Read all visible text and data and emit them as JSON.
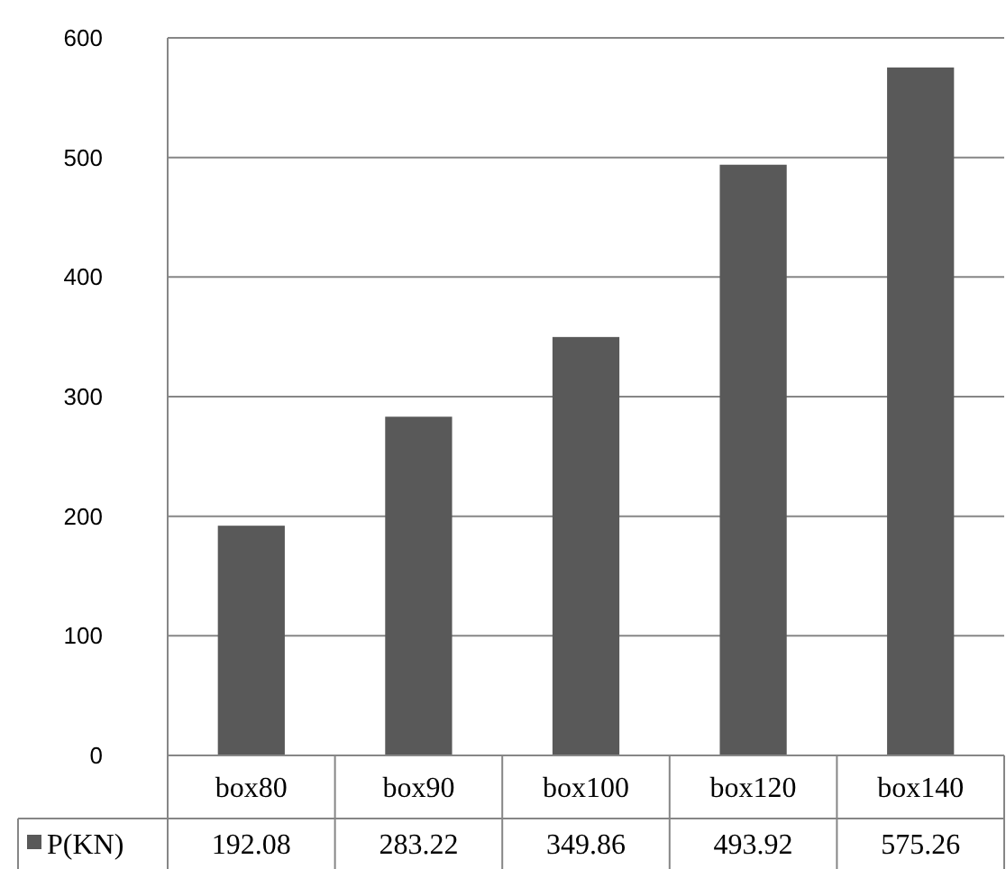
{
  "chart_data": {
    "type": "bar",
    "categories": [
      "box80",
      "box90",
      "box100",
      "box120",
      "box140"
    ],
    "series": [
      {
        "name": "P(KN)",
        "color": "#595959",
        "values": [
          192.08,
          283.22,
          349.86,
          493.92,
          575.26
        ]
      }
    ],
    "ylim": [
      0,
      600
    ],
    "yticks": [
      0,
      100,
      200,
      300,
      400,
      500,
      600
    ],
    "grid": "y",
    "data_labels": true,
    "legend": "bottom"
  }
}
